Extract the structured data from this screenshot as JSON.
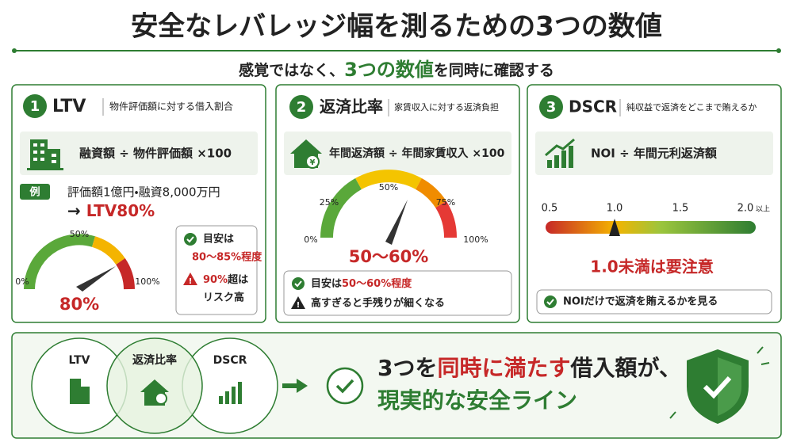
{
  "title": "安全なレバレッジ幅を測るための3つの数値",
  "subtitle": {
    "before": "感覚ではなく、",
    "highlight": "3つの数値",
    "after": "を同時に確認する"
  },
  "cards": [
    {
      "number": "1",
      "name": "LTV",
      "desc": "物件評価額に対する借入割合",
      "formula": "融資額 ÷ 物件評価額 ×100",
      "example_tag": "例",
      "example": "評価額1億円・融資8,000万円",
      "result_prefix": "→",
      "result": "LTV80%",
      "gauge_labels": [
        "0%",
        "50%",
        "100%"
      ],
      "gauge_value": "80%",
      "note1": "目安は",
      "note1_value": "80〜85%程度",
      "note2_value": "90%",
      "note2": "超は",
      "note2_line2": "リスク高"
    },
    {
      "number": "2",
      "name": "返済比率",
      "desc": "家賃収入に対する返済負担",
      "formula": "年間返済額 ÷ 年間家賃収入 ×100",
      "gauge_labels": [
        "0%",
        "25%",
        "50%",
        "75%",
        "100%"
      ],
      "gauge_value": "50〜60%",
      "note1": "目安は",
      "note1_value": "50〜60%程度",
      "note2": "高すぎると手残りが細くなる"
    },
    {
      "number": "3",
      "name": "DSCR",
      "desc": "純収益で返済をどこまで賄えるか",
      "formula": "NOI ÷ 年間元利返済額",
      "scale_labels": [
        "0.5",
        "1.0",
        "1.5",
        "2.0"
      ],
      "scale_suffix": "以上",
      "warning": "1.0未満は要注意",
      "note1": "NOIだけで返済を賄えるかを見る"
    }
  ],
  "summary": {
    "circles": [
      "LTV",
      "返済比率",
      "DSCR"
    ],
    "line1_a": "3つを",
    "line1_b": "同時に満たす",
    "line1_c": "借入額が、",
    "line2": "現実的な安全ライン"
  }
}
